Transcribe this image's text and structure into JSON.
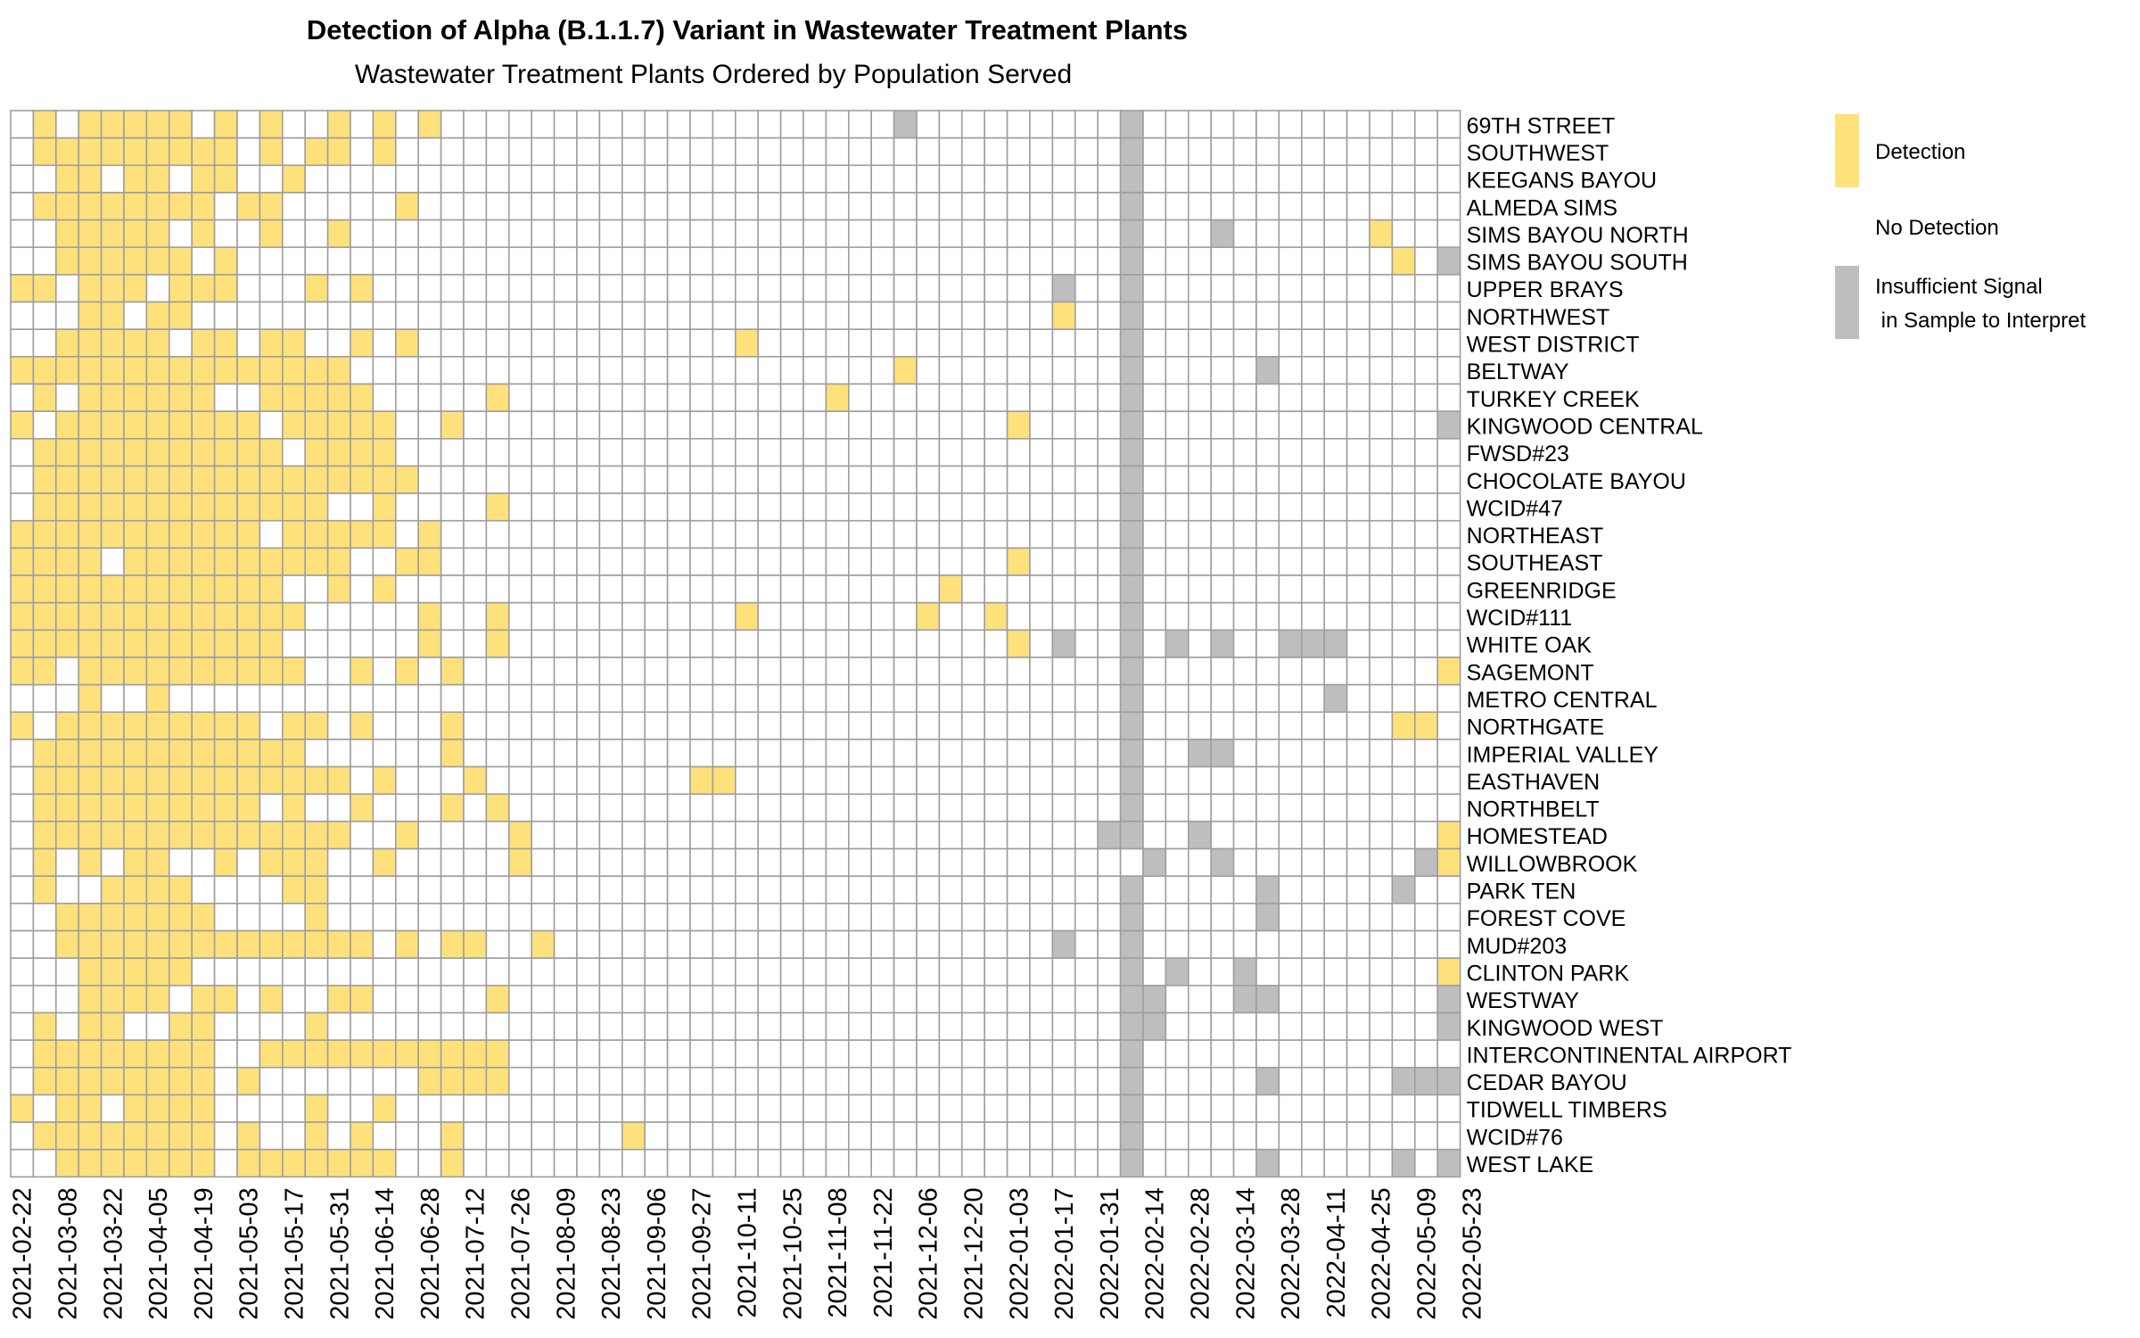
{
  "chart_data": {
    "type": "heatmap",
    "title": "Detection of Alpha (B.1.1.7) Variant in Wastewater Treatment Plants",
    "subtitle": "Wastewater Treatment Plants Ordered by Population Served",
    "x_tick_labels": [
      "2021-02-22",
      "2021-03-08",
      "2021-03-22",
      "2021-04-05",
      "2021-04-19",
      "2021-05-03",
      "2021-05-17",
      "2021-05-31",
      "2021-06-14",
      "2021-06-28",
      "2021-07-12",
      "2021-07-26",
      "2021-08-09",
      "2021-08-23",
      "2021-09-06",
      "2021-09-27",
      "2021-10-11",
      "2021-10-25",
      "2021-11-08",
      "2021-11-22",
      "2021-12-06",
      "2021-12-20",
      "2022-01-03",
      "2022-01-17",
      "2022-01-31",
      "2022-02-14",
      "2022-02-28",
      "2022-03-14",
      "2022-03-28",
      "2022-04-11",
      "2022-04-25",
      "2022-05-09",
      "2022-05-23"
    ],
    "plants": [
      "69TH STREET",
      "SOUTHWEST",
      "KEEGANS BAYOU",
      "ALMEDA SIMS",
      "SIMS BAYOU NORTH",
      "SIMS BAYOU SOUTH",
      "UPPER BRAYS",
      "NORTHWEST",
      "WEST DISTRICT",
      "BELTWAY",
      "TURKEY CREEK",
      "KINGWOOD CENTRAL",
      "FWSD#23",
      "CHOCOLATE BAYOU",
      "WCID#47",
      "NORTHEAST",
      "SOUTHEAST",
      "GREENRIDGE",
      "WCID#111",
      "WHITE OAK",
      "SAGEMONT",
      "METRO CENTRAL",
      "NORTHGATE",
      "IMPERIAL VALLEY",
      "EASTHAVEN",
      "NORTHBELT",
      "HOMESTEAD",
      "WILLOWBROOK",
      "PARK TEN",
      "FOREST COVE",
      "MUD#203",
      "CLINTON PARK",
      "WESTWAY",
      "KINGWOOD WEST",
      "INTERCONTINENTAL AIRPORT",
      "CEDAR BAYOU",
      "TIDWELL TIMBERS",
      "WCID#76",
      "WEST LAKE"
    ],
    "legend": [
      {
        "label": "Detection",
        "color": "#FFE17B"
      },
      {
        "label": "No Detection",
        "color": "#FFFFFF"
      },
      {
        "label": "Insufficient Signal\n in Sample to Interpret",
        "color": "#BEBEBE"
      }
    ],
    "grid": true,
    "legend_position": "right",
    "status_codes": {
      "0": "No Detection",
      "1": "Detection",
      "2": "Insufficient Signal in Sample to Interpret"
    },
    "matrix": [
      "0101111101010010101000000000000000000002000000000200000000000000",
      "0111111111010110100000000000000000000000000000000200000000000000",
      "0011011011001000000000000000000000000000000000000200000000000000",
      "0111111110110000010000000000000000000000000000000200000000000000",
      "0011111010010010000000000000000000000000000000000200020000001000",
      "0011111101000000000000000000000000000000000000000200000000000102",
      "1101110111000101000000000000000000000000000000200200000000000000",
      "0001101100000000000000000000000000000000000000100200000000000000",
      "0011111011011001010000000000000010000000000000000200000000000000",
      "1111111111111110000000000000000000000001000000000200000200000000",
      "0101111110011111000001000000000000001000000000000200000000000000",
      "1011111111101111100100000000000000000000000010000200000000000002",
      "0111111111110111100000000000000000000000000000000200000000000000",
      "0111111111111111110000000000000000000000000000000200000000000000",
      "0111111111111100100001000000000000000000000000000200000000000000",
      "1111111111101111101000000000000000000000000000000200000000000000",
      "1111011111111110011000000000000000000000000010000200000000000000",
      "1111111111110010100000000000000000000000010000000200000000000000",
      "1111111111111000001001000000000010000000100100000200000000000000",
      "1111111111110000001001000000000000000000000010200202020022200000",
      "1101111111111001010100000000000000000000000000000200000000000001",
      "0001001000000000000000000000000000000000000000000200000000200000",
      "1011111111101101000100000000000000000000000000000200000000000110",
      "0111111111111000000100000000000000000000000000000200220000000000",
      "0111111111111110100010000000001100000000000000000200000000000000",
      "0111111111101001000101000000000000000000000000000200000000000000",
      "0111111111111110010000100000000000000000000000002200200000000001",
      "0101011001011100100000100000000000000000000000000020020000000021",
      "0100111100001100000000000000000000000000000000000200000200000200",
      "0011111110000100000000000000000000000000000000000200000200000000",
      "0011111111111111010110010000000000000000000000200200000000000000",
      "0001111100000000000000000000000000000000000000000202002000000001",
      "0001111011010011000001000000000000000000000000000220002200000002",
      "0101100110000100000000000000000000000000000000000220000000000002",
      "0111111110011111111111000000000000000000000000000200000000000000",
      "0111111110100000001111000000000000000000000000000200000200000222",
      "1011011110000100100000000000000000000000000000000200000000000000",
      "0111111110100101000100000001000000000000000000000200000000000000",
      "0011111110111111100100000000000000000000000000000200000200000202"
    ]
  }
}
